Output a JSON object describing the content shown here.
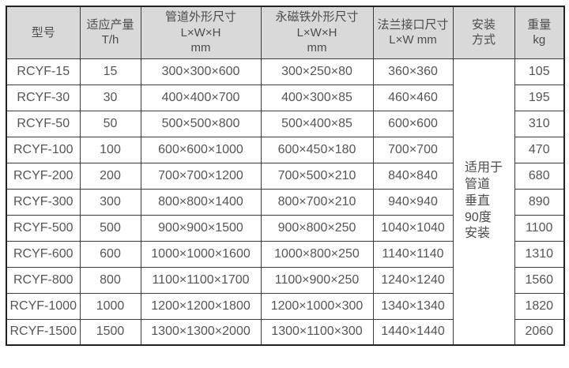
{
  "table": {
    "headers": {
      "model": "型号",
      "capacity": "适应产量T/h",
      "pipe_dims": "管道外形尺寸\nL×W×H\nmm",
      "magnet_dims": "永磁铁外形尺寸\nL×W×H\nmm",
      "flange_dims": "法兰接口尺寸\nL×W mm",
      "install": "安装\n方式",
      "weight": "重量\nkg"
    },
    "install_note": "适用于\n管道\n垂直\n90度\n安装",
    "rows": [
      {
        "model": "RCYF-15",
        "capacity": "15",
        "pipe": "300×300×600",
        "magnet": "300×250×80",
        "flange": "360×360",
        "weight": "105"
      },
      {
        "model": "RCYF-30",
        "capacity": "30",
        "pipe": "400×400×700",
        "magnet": "400×300×85",
        "flange": "460×460",
        "weight": "195"
      },
      {
        "model": "RCYF-50",
        "capacity": "50",
        "pipe": "500×500×800",
        "magnet": "500×400×85",
        "flange": "600×600",
        "weight": "310"
      },
      {
        "model": "RCYF-100",
        "capacity": "100",
        "pipe": "600×600×1000",
        "magnet": "600×450×180",
        "flange": "700×700",
        "weight": "470"
      },
      {
        "model": "RCYF-200",
        "capacity": "200",
        "pipe": "700×700×1200",
        "magnet": "700×500×210",
        "flange": "840×840",
        "weight": "680"
      },
      {
        "model": "RCYF-300",
        "capacity": "300",
        "pipe": "800×800×1400",
        "magnet": "800×700×210",
        "flange": "940×940",
        "weight": "890"
      },
      {
        "model": "RCYF-500",
        "capacity": "500",
        "pipe": "900×900×1500",
        "magnet": "900×800×250",
        "flange": "1040×1040",
        "weight": "1100"
      },
      {
        "model": "RCYF-600",
        "capacity": "600",
        "pipe": "1000×1000×1600",
        "magnet": "1000×800×250",
        "flange": "1140×1140",
        "weight": "1310"
      },
      {
        "model": "RCYF-800",
        "capacity": "800",
        "pipe": "1100×1100×1700",
        "magnet": "1100×900×250",
        "flange": "1240×1240",
        "weight": "1560"
      },
      {
        "model": "RCYF-1000",
        "capacity": "1000",
        "pipe": "1200×1200×1800",
        "magnet": "1200×1000×300",
        "flange": "1340×1340",
        "weight": "1820"
      },
      {
        "model": "RCYF-1500",
        "capacity": "1500",
        "pipe": "1300×1300×2000",
        "magnet": "1300×1100×300",
        "flange": "1440×1440",
        "weight": "2060"
      }
    ],
    "colors": {
      "header_bg": "#d9d9d9",
      "border_outer": "#222222",
      "border_inner": "#3c3c3c",
      "text": "#555555"
    }
  }
}
